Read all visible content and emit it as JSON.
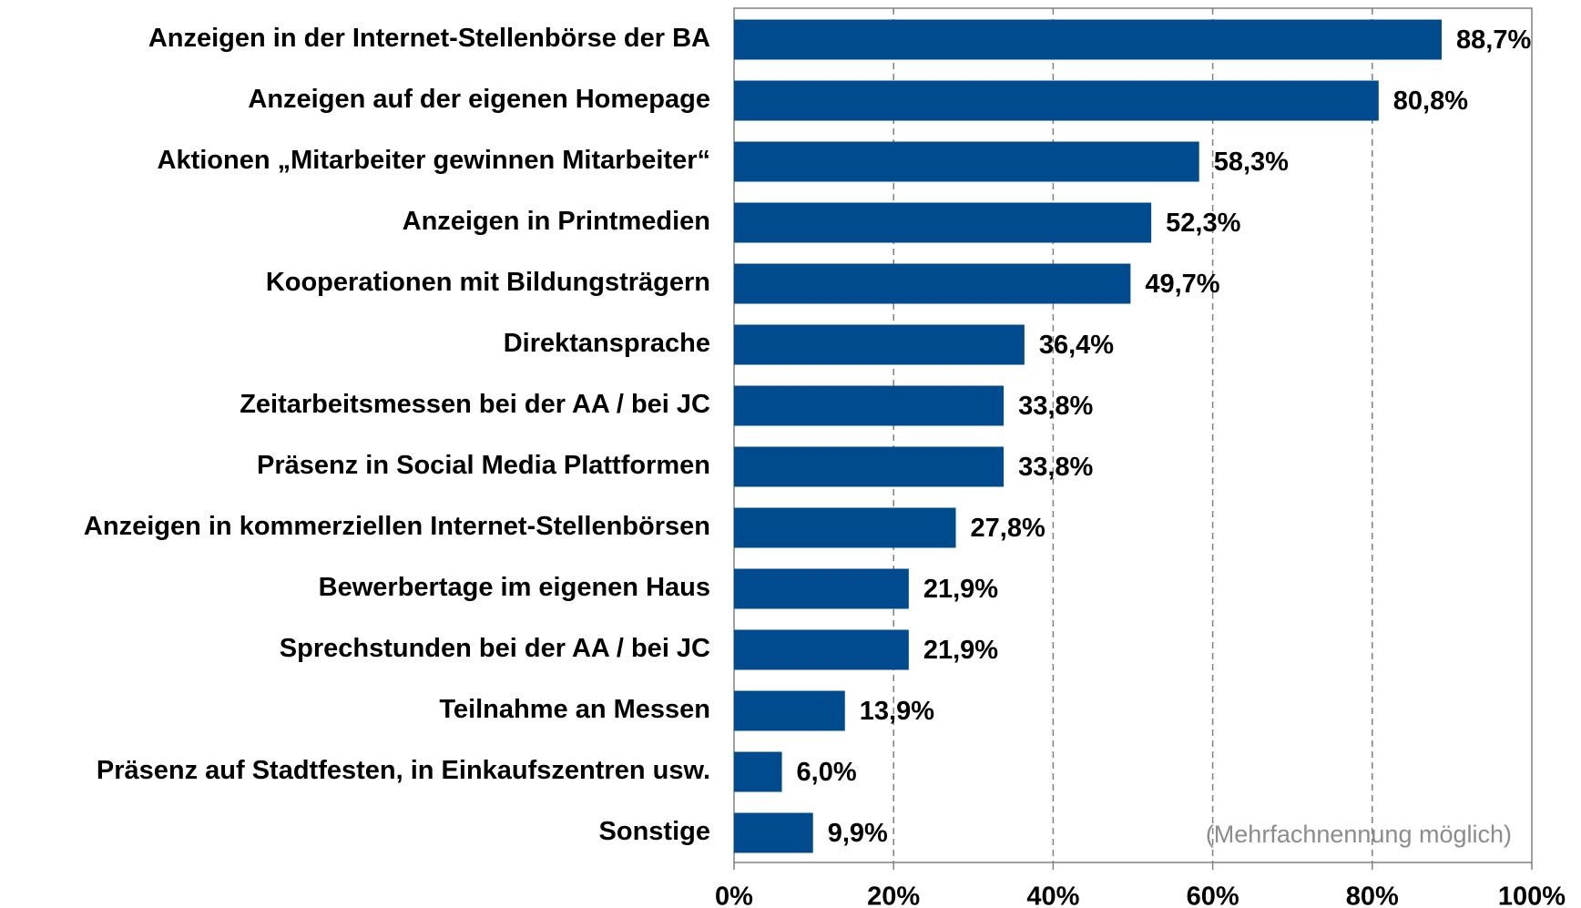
{
  "chart_data": {
    "type": "bar",
    "orientation": "horizontal",
    "categories": [
      "Anzeigen in der Internet-Stellenbörse der BA",
      "Anzeigen auf der eigenen Homepage",
      "Aktionen „Mitarbeiter gewinnen Mitarbeiter“",
      "Anzeigen in Printmedien",
      "Kooperationen mit Bildungsträgern",
      "Direktansprache",
      "Zeitarbeitsmessen bei der AA / bei JC",
      "Präsenz in Social Media Plattformen",
      "Anzeigen in kommerziellen Internet-Stellenbörsen",
      "Bewerbertage im eigenen Haus",
      "Sprechstunden bei der AA / bei JC",
      "Teilnahme an Messen",
      "Präsenz auf Stadtfesten, in Einkaufszentren usw.",
      "Sonstige"
    ],
    "values": [
      88.7,
      80.8,
      58.3,
      52.3,
      49.7,
      36.4,
      33.8,
      33.8,
      27.8,
      21.9,
      21.9,
      13.9,
      6.0,
      9.9
    ],
    "value_labels": [
      "88,7%",
      "80,8%",
      "58,3%",
      "52,3%",
      "49,7%",
      "36,4%",
      "33,8%",
      "33,8%",
      "27,8%",
      "21,9%",
      "21,9%",
      "13,9%",
      "6,0%",
      "9,9%"
    ],
    "color": "#004b8d",
    "xlim": [
      0,
      100
    ],
    "xticks": [
      {
        "value": 0,
        "label": "0%"
      },
      {
        "value": 20,
        "label": "20%"
      },
      {
        "value": 40,
        "label": "40%"
      },
      {
        "value": 60,
        "label": "60%"
      },
      {
        "value": 80,
        "label": "80%"
      },
      {
        "value": 100,
        "label": "100%"
      }
    ],
    "grid": true,
    "annotation": "(Mehrfachnennung möglich)"
  }
}
